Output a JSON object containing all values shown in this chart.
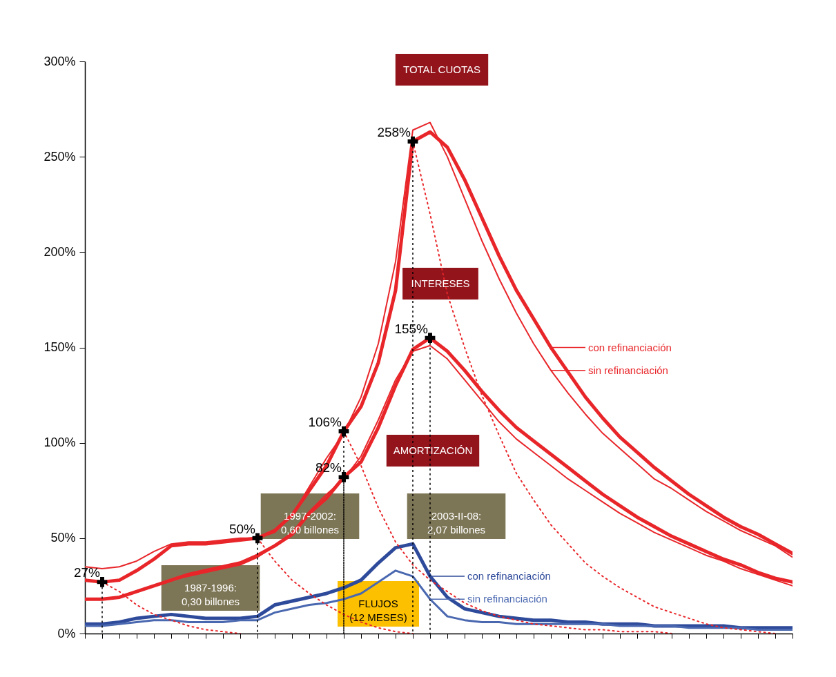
{
  "chart_data": {
    "type": "line",
    "categories": [
      null,
      null,
      null,
      null,
      null,
      null,
      null,
      null,
      null,
      null,
      null,
      null,
      null,
      null,
      null,
      null,
      null,
      null,
      null,
      null,
      null,
      null,
      null,
      null,
      null,
      null,
      null,
      null,
      null,
      null,
      null,
      null,
      null,
      null,
      null,
      null,
      null,
      null,
      null,
      null,
      null,
      null
    ],
    "series": [
      {
        "name": "con refinanciación",
        "color": "#e8262a",
        "values": [
          28,
          27,
          28,
          33,
          39,
          46,
          47,
          47,
          48,
          49,
          50,
          54,
          62,
          75,
          88,
          106,
          119,
          142,
          180,
          258,
          263,
          255,
          238,
          218,
          198,
          180,
          165,
          150,
          137,
          124,
          113,
          103,
          95,
          87,
          80,
          73,
          67,
          61,
          56,
          52,
          47,
          42
        ]
      },
      {
        "name": "sin refinanciación",
        "color": "#e8262a",
        "values": [
          35,
          34,
          35,
          38,
          43,
          47,
          48,
          48,
          49,
          50,
          50,
          53,
          62,
          77,
          92,
          105,
          124,
          152,
          195,
          264,
          268,
          250,
          228,
          206,
          186,
          168,
          152,
          138,
          126,
          115,
          105,
          97,
          89,
          81,
          76,
          70,
          64,
          59,
          54,
          50,
          46,
          40
        ]
      },
      {
        "color": "#e8262a",
        "values": [
          18,
          18,
          19,
          22,
          25,
          28,
          31,
          33,
          35,
          37,
          41,
          46,
          52,
          63,
          71,
          82,
          90,
          108,
          130,
          149,
          155,
          148,
          138,
          127,
          117,
          108,
          101,
          94,
          87,
          80,
          73,
          67,
          61,
          56,
          51,
          47,
          43,
          39,
          36,
          32,
          29,
          27
        ]
      },
      {
        "color": "#e8262a",
        "values": [
          18,
          18,
          19,
          22,
          25,
          28,
          30,
          32,
          34,
          36,
          40,
          46,
          53,
          64,
          73,
          81,
          93,
          112,
          133,
          148,
          151,
          144,
          133,
          122,
          111,
          102,
          95,
          88,
          81,
          75,
          69,
          63,
          58,
          53,
          49,
          45,
          41,
          38,
          34,
          31,
          28,
          25
        ]
      },
      {
        "name": "con refinanciación",
        "color": "#2e4a9a",
        "values": [
          5,
          5,
          6,
          8,
          9,
          10,
          9,
          8,
          8,
          8,
          9,
          15,
          17,
          19,
          21,
          24,
          28,
          37,
          45,
          47,
          30,
          19,
          13,
          11,
          9,
          8,
          7,
          7,
          6,
          6,
          5,
          5,
          5,
          4,
          4,
          4,
          4,
          4,
          3,
          3,
          3,
          3
        ]
      },
      {
        "name": "sin refinanciación",
        "color": "#4a68b0",
        "values": [
          4,
          4,
          5,
          6,
          7,
          7,
          6,
          6,
          6,
          7,
          7,
          11,
          13,
          15,
          16,
          18,
          21,
          27,
          33,
          30,
          18,
          9,
          7,
          6,
          6,
          5,
          5,
          5,
          5,
          5,
          5,
          4,
          4,
          4,
          4,
          3,
          3,
          3,
          3,
          2,
          2,
          2
        ]
      },
      {
        "type": "scatter",
        "marker": "cross",
        "color": "#000000",
        "values": [
          null,
          27,
          null,
          null,
          null,
          null,
          null,
          null,
          null,
          null,
          50,
          null,
          null,
          null,
          null,
          106,
          null,
          null,
          null,
          258,
          null,
          null,
          null,
          null,
          null,
          null,
          null,
          null,
          null,
          null,
          null,
          null,
          null,
          null,
          null,
          null,
          null,
          null,
          null,
          null,
          null,
          null
        ],
        "value_labels": [
          null,
          "27%",
          null,
          null,
          null,
          null,
          null,
          null,
          null,
          null,
          "50%",
          null,
          null,
          null,
          null,
          "106%",
          null,
          null,
          null,
          "258%",
          null,
          null,
          null,
          null,
          null,
          null,
          null,
          null,
          null,
          null,
          null,
          null,
          null,
          null,
          null,
          null,
          null,
          null,
          null,
          null,
          null,
          null
        ]
      },
      {
        "type": "scatter",
        "marker": "cross",
        "color": "#000000",
        "values": [
          null,
          null,
          null,
          null,
          null,
          null,
          null,
          null,
          null,
          null,
          null,
          null,
          null,
          null,
          null,
          82,
          null,
          null,
          null,
          null,
          155,
          null,
          null,
          null,
          null,
          null,
          null,
          null,
          null,
          null,
          null,
          null,
          null,
          null,
          null,
          null,
          null,
          null,
          null,
          null,
          null,
          null
        ],
        "value_labels": [
          null,
          null,
          null,
          null,
          null,
          null,
          null,
          null,
          null,
          null,
          null,
          null,
          null,
          null,
          null,
          "82%",
          null,
          null,
          null,
          null,
          "155%",
          null,
          null,
          null,
          null,
          null,
          null,
          null,
          null,
          null,
          null,
          null,
          null,
          null,
          null,
          null,
          null,
          null,
          null,
          null,
          null,
          null
        ]
      },
      {
        "color": "#e8262a",
        "line_style": "dotted",
        "values": [
          null,
          27,
          22,
          15,
          10,
          7,
          4,
          2,
          1,
          0,
          null,
          null,
          null,
          null,
          null,
          null,
          null,
          null,
          null,
          null,
          null,
          null,
          null,
          null,
          null,
          null,
          null,
          null,
          null,
          null,
          null,
          null,
          null,
          null,
          null,
          null,
          null,
          null,
          null,
          null,
          null,
          null
        ]
      },
      {
        "color": "#e8262a",
        "line_style": "dotted",
        "values": [
          null,
          null,
          null,
          null,
          null,
          null,
          null,
          null,
          null,
          null,
          50,
          38,
          28,
          21,
          15,
          10,
          6,
          3,
          1,
          0,
          null,
          null,
          null,
          null,
          null,
          null,
          null,
          null,
          null,
          null,
          null,
          null,
          null,
          null,
          null,
          null,
          null,
          null,
          null,
          null,
          null,
          null
        ]
      },
      {
        "color": "#e8262a",
        "line_style": "dotted",
        "values": [
          null,
          null,
          null,
          null,
          null,
          null,
          null,
          null,
          null,
          null,
          null,
          null,
          null,
          null,
          null,
          106,
          88,
          66,
          48,
          36,
          28,
          22,
          16,
          12,
          9,
          7,
          5,
          4,
          3,
          2,
          2,
          1,
          1,
          1,
          0,
          null,
          null,
          null,
          null,
          null,
          null,
          null
        ]
      },
      {
        "color": "#e8262a",
        "line_style": "dotted",
        "values": [
          null,
          null,
          null,
          null,
          null,
          null,
          null,
          null,
          null,
          null,
          null,
          null,
          null,
          null,
          null,
          null,
          null,
          null,
          null,
          258,
          220,
          178,
          150,
          125,
          104,
          84,
          70,
          57,
          47,
          37,
          30,
          24,
          19,
          14,
          11,
          8,
          5,
          3,
          2,
          1,
          0,
          null
        ]
      }
    ],
    "ylim": [
      0,
      300
    ],
    "yticks": [
      {
        "value": 0,
        "label": "0%"
      },
      {
        "value": 50,
        "label": "50%"
      },
      {
        "value": 100,
        "label": "100%"
      },
      {
        "value": 150,
        "label": "150%"
      },
      {
        "value": 200,
        "label": "200%"
      },
      {
        "value": 250,
        "label": "250%"
      },
      {
        "value": 300,
        "label": "300%"
      }
    ],
    "tick_labels": "y",
    "line_style": "solid",
    "legend": "right",
    "annotations": [
      "TOTAL CUOTAS",
      "INTERESES",
      "AMORTIZACIÓN",
      "1987-1996:\n0,30 billones",
      "1997-2002:\n0,60 billones",
      "2003-II-08:\n2,07 billones",
      "FLUJOS\n(12 MESES)"
    ]
  }
}
